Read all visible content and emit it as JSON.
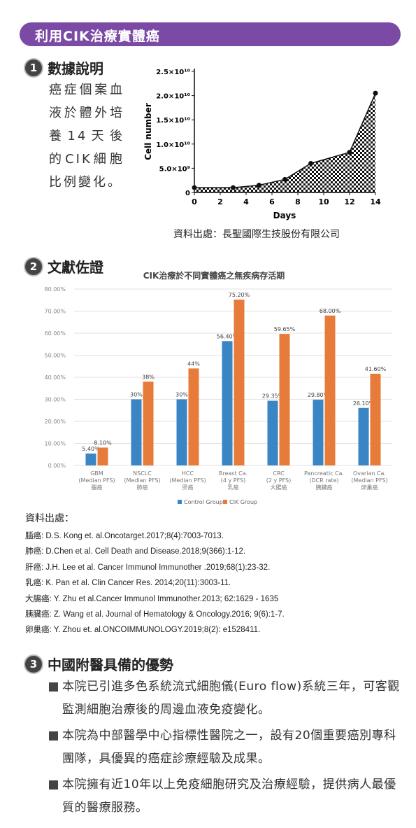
{
  "banner": {
    "title": "利用CIK治療實體癌"
  },
  "section1": {
    "number": "1",
    "title": "數據說明",
    "text": "癌症個案血液於體外培養14天後的CIK細胞比例變化。",
    "source": "資料出處：長聖國際生技股份有限公司"
  },
  "section2": {
    "number": "2",
    "title": "文獻佐證"
  },
  "section3": {
    "number": "3",
    "title": "中國附醫具備的優勢",
    "items": [
      "本院已引進多色系統流式細胞儀(Euro flow)系統三年，可客觀監測細胞治療後的周邊血液免疫變化。",
      "本院為中部醫學中心指標性醫院之一，設有20個重要癌別專科團隊，具優異的癌症診療經驗及成果。",
      "本院擁有近10年以上免疫細胞研究及治療經驗，提供病人最優質的醫療服務。"
    ]
  },
  "references": {
    "heading": "資料出處：",
    "items": [
      "腦癌: D.S. Kong et. al.Oncotarget.2017;8(4):7003-7013.",
      "肺癌: D.Chen et al. Cell Death and Disease.2018;9(366):1-12.",
      "肝癌: J.H. Lee et al. Cancer Immunol Immunother .2019;68(1):23-32.",
      "乳癌: K. Pan et al. Clin Cancer Res. 2014;20(11):3003-11.",
      "大腸癌: Y. Zhu et al.Cancer Immunol Immunother.2013; 62:1629 - 1635",
      "胰臟癌: Z. Wang et al. Journal of Hematology & Oncology.2016; 9(6):1-7.",
      "卵巢癌: Y. Zhou et. al.ONCOIMMUNOLOGY.2019;8(2): e1528411."
    ]
  },
  "colors": {
    "control": "#3a85c4",
    "cik": "#e77b3a",
    "banner": "#7b4aa5"
  },
  "chart_data": [
    {
      "type": "area",
      "title": "",
      "xlabel": "Days",
      "ylabel": "Cell number",
      "x": [
        0,
        3,
        5,
        7,
        9,
        12,
        14
      ],
      "y": [
        1000000000.0,
        1000000000.0,
        1500000000.0,
        2700000000.0,
        6000000000.0,
        8300000000.0,
        20500000000.0
      ],
      "xlim": [
        0,
        14
      ],
      "ylim": [
        0,
        25000000000.0
      ],
      "xticks": [
        "0",
        "2",
        "4",
        "6",
        "8",
        "10",
        "12",
        "14"
      ],
      "yticks": [
        "0",
        "5.0×10⁹",
        "1.0×10¹⁰",
        "1.5×10¹⁰",
        "2.0×10¹⁰",
        "2.5×10¹⁰"
      ],
      "fill": "checkerboard"
    },
    {
      "type": "bar",
      "title": "CIK治療於不同實體癌之無疾病存活期",
      "categories": [
        [
          "GBM",
          "(Median PFS)",
          "腦癌"
        ],
        [
          "NSCLC",
          "(Median PFS)",
          "肺癌"
        ],
        [
          "HCC",
          "(Median PFS)",
          "肝癌"
        ],
        [
          "Breast Ca.",
          "(4 y PFS)",
          "乳癌"
        ],
        [
          "CRC",
          "(2 y PFS)",
          "大腸癌"
        ],
        [
          "Pancreatic Ca.",
          "(DCR rate)",
          "胰臟癌"
        ],
        [
          "Ovarian Ca.",
          "(Median PFS)",
          "卵巢癌"
        ]
      ],
      "series": [
        {
          "name": "Control Group",
          "values": [
            5.4,
            30,
            30,
            56.4,
            29.35,
            29.8,
            26.1
          ],
          "labels": [
            "5.40%",
            "30%",
            "30%",
            "56.40%",
            "29.35%",
            "29.80%",
            "26.10%"
          ]
        },
        {
          "name": "CIK Group",
          "values": [
            8.1,
            38,
            44,
            75.2,
            59.65,
            68.0,
            41.6
          ],
          "labels": [
            "8.10%",
            "38%",
            "44%",
            "75.20%",
            "59.65%",
            "68.00%",
            "41.60%"
          ]
        }
      ],
      "ylim": [
        0,
        80
      ],
      "yticks": [
        "0.00%",
        "10.00%",
        "20.00%",
        "30.00%",
        "40.00%",
        "50.00%",
        "60.00%",
        "70.00%",
        "80.00%"
      ],
      "grid": true,
      "legend": "bottom"
    }
  ]
}
